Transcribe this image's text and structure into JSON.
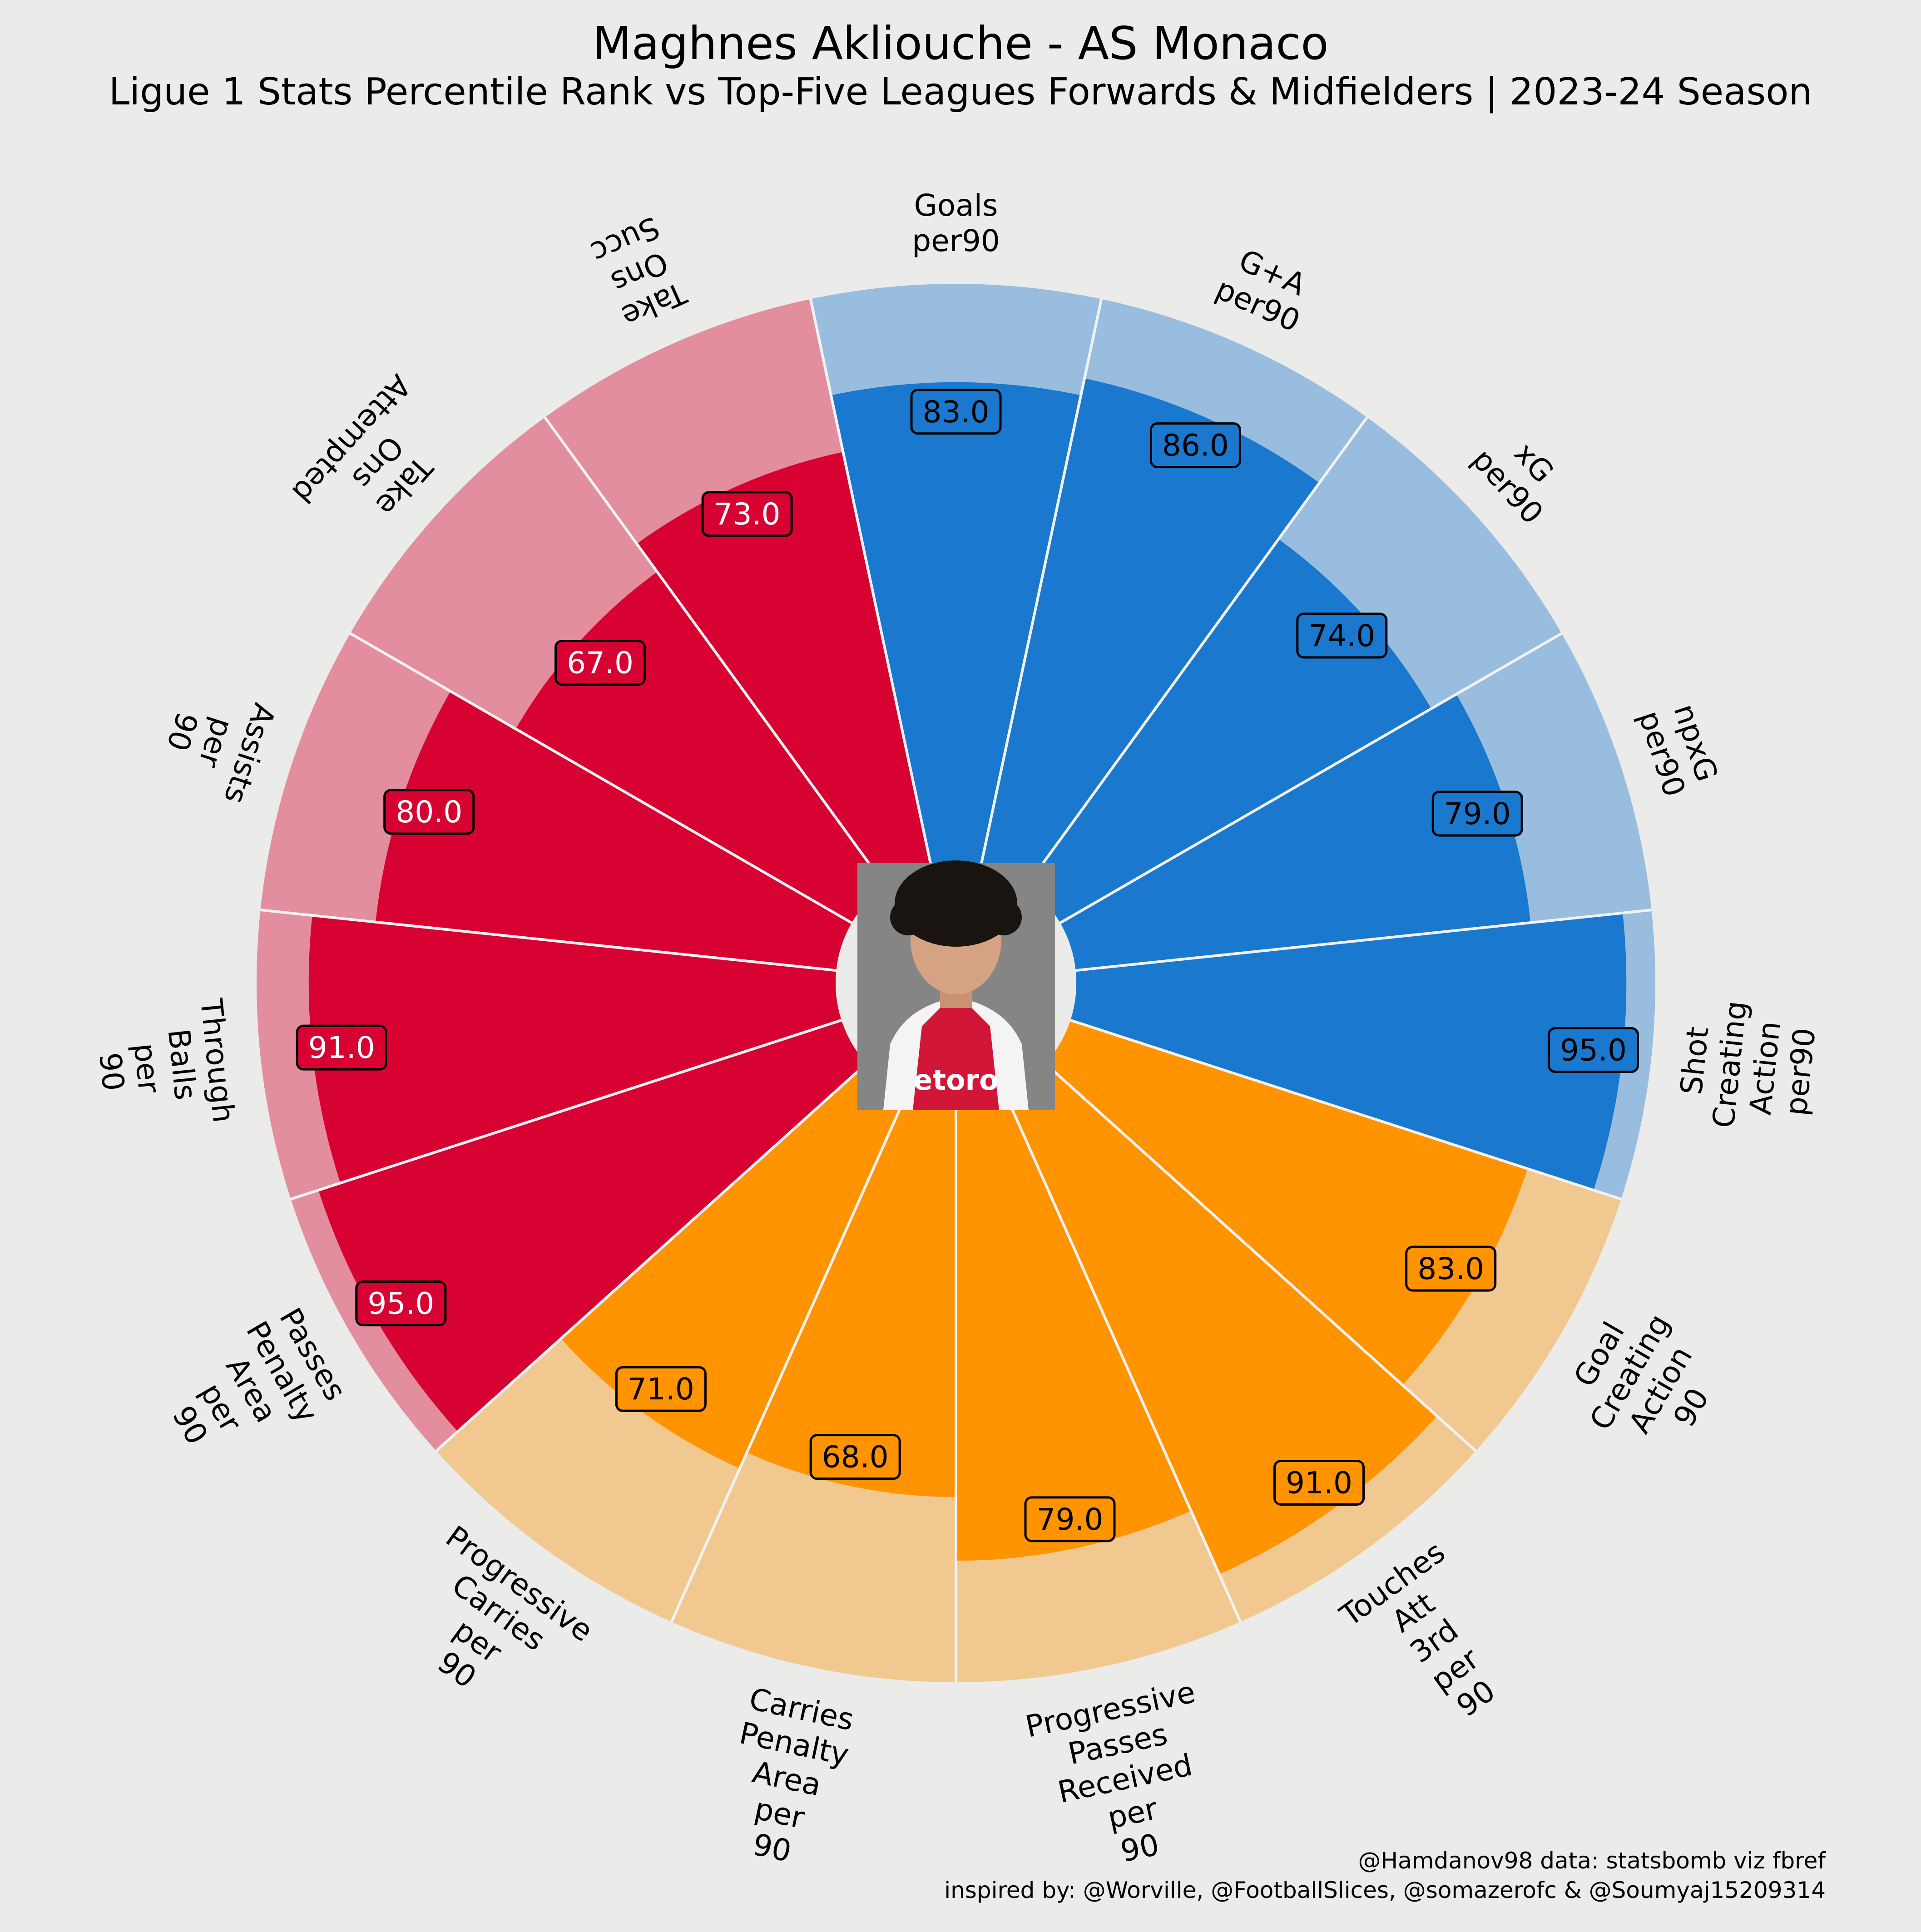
{
  "chart_data": {
    "type": "radial-bar",
    "title": "Maghnes Akliouche - AS Monaco",
    "subtitle": "Ligue 1 Stats Percentile Rank vs Top-Five Leagues Forwards & Midfielders | 2023-24 Season",
    "range": [
      0,
      100
    ],
    "groups": [
      {
        "name": "attacking",
        "bar_color": "#1a78cf",
        "background_color": "#99bddf",
        "label_text_color": "#000000"
      },
      {
        "name": "creation",
        "bar_color": "#ff9300",
        "background_color": "#f1c88f",
        "label_text_color": "#000000"
      },
      {
        "name": "possession",
        "bar_color": "#d70232",
        "background_color": "#e38e9e",
        "label_text_color": "#ffffff"
      }
    ],
    "parameters": [
      {
        "label": [
          "Goals",
          "per90"
        ],
        "value": 83.0,
        "value_label": "83.0",
        "group": 0
      },
      {
        "label": [
          "G+A",
          "per90"
        ],
        "value": 86.0,
        "value_label": "86.0",
        "group": 0
      },
      {
        "label": [
          "xG",
          "per90"
        ],
        "value": 74.0,
        "value_label": "74.0",
        "group": 0
      },
      {
        "label": [
          "npxG",
          "per90"
        ],
        "value": 79.0,
        "value_label": "79.0",
        "group": 0
      },
      {
        "label": [
          "Shot",
          "Creating",
          "Action",
          "per90"
        ],
        "value": 95.0,
        "value_label": "95.0",
        "group": 0
      },
      {
        "label": [
          "Goal",
          "Creating",
          "Action",
          "90"
        ],
        "value": 83.0,
        "value_label": "83.0",
        "group": 1
      },
      {
        "label": [
          "Touches",
          "Att",
          "3rd",
          "per",
          "90"
        ],
        "value": 91.0,
        "value_label": "91.0",
        "group": 1
      },
      {
        "label": [
          "Progressive",
          "Passes",
          "Received",
          "per",
          "90"
        ],
        "value": 79.0,
        "value_label": "79.0",
        "group": 1
      },
      {
        "label": [
          "Carries",
          "Penalty",
          "Area",
          "per",
          "90"
        ],
        "value": 68.0,
        "value_label": "68.0",
        "group": 1
      },
      {
        "label": [
          "Progressive",
          "Carries",
          "per",
          "90"
        ],
        "value": 71.0,
        "value_label": "71.0",
        "group": 1
      },
      {
        "label": [
          "Passes",
          "Penalty",
          "Area",
          "per",
          "90"
        ],
        "value": 95.0,
        "value_label": "95.0",
        "group": 2
      },
      {
        "label": [
          "Through",
          "Balls",
          "per",
          "90"
        ],
        "value": 91.0,
        "value_label": "91.0",
        "group": 2
      },
      {
        "label": [
          "Assists",
          "per",
          "90"
        ],
        "value": 80.0,
        "value_label": "80.0",
        "group": 2
      },
      {
        "label": [
          "Take",
          "Ons",
          "Attempted"
        ],
        "value": 67.0,
        "value_label": "67.0",
        "group": 2
      },
      {
        "label": [
          "Take",
          "Ons",
          "Succ"
        ],
        "value": 73.0,
        "value_label": "73.0",
        "group": 2
      }
    ]
  },
  "credits": {
    "line1": "@Hamdanov98 data: statsbomb viz fbref",
    "line2": "inspired by: @Worville, @FootballSlices, @somazerofc & @Soumyaj15209314"
  },
  "player_photo": {
    "kit_text": "etoro"
  },
  "colors": {
    "background": "#ebebe9",
    "divider": "#f2f2f2"
  }
}
